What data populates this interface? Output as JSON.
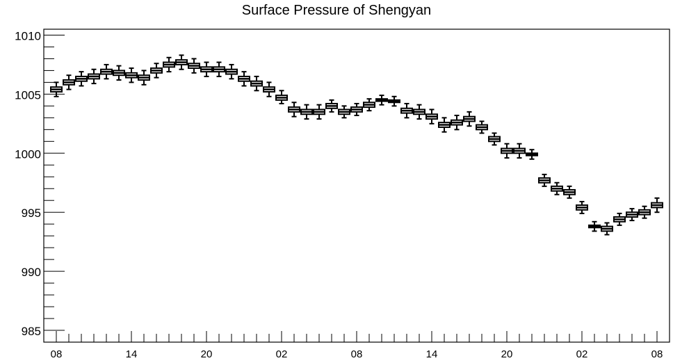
{
  "chart_data": {
    "type": "boxplot",
    "title": "Surface Pressure of Shengyan",
    "xlabel": "",
    "ylabel": "",
    "ylim": [
      984,
      1010.5
    ],
    "yticks": [
      985,
      990,
      995,
      1000,
      1005,
      1010
    ],
    "xlim": [
      0,
      50
    ],
    "xticks": [
      {
        "x": 1,
        "label": "08"
      },
      {
        "x": 7,
        "label": "14"
      },
      {
        "x": 13,
        "label": "20"
      },
      {
        "x": 19,
        "label": "02"
      },
      {
        "x": 25,
        "label": "08"
      },
      {
        "x": 31,
        "label": "14"
      },
      {
        "x": 37,
        "label": "20"
      },
      {
        "x": 43,
        "label": "02"
      },
      {
        "x": 49,
        "label": "08"
      }
    ],
    "grid": false,
    "series": [
      {
        "x": [
          1,
          2,
          3,
          4,
          5,
          6,
          7,
          8,
          9,
          10,
          11,
          12,
          13,
          14,
          15,
          16,
          17,
          18,
          19,
          20,
          21,
          22,
          23,
          24,
          25,
          26,
          27,
          28,
          29,
          30,
          31,
          32,
          33,
          34,
          35,
          36,
          37,
          38,
          39,
          40,
          41,
          42,
          43,
          44,
          45,
          46,
          47,
          48,
          49
        ],
        "median": [
          1005.4,
          1006.0,
          1006.3,
          1006.5,
          1006.9,
          1006.8,
          1006.6,
          1006.4,
          1007.0,
          1007.5,
          1007.7,
          1007.4,
          1007.1,
          1007.1,
          1006.9,
          1006.3,
          1005.9,
          1005.4,
          1004.7,
          1003.7,
          1003.5,
          1003.5,
          1004.0,
          1003.5,
          1003.7,
          1004.1,
          1004.5,
          1004.4,
          1003.6,
          1003.5,
          1003.1,
          1002.4,
          1002.6,
          1002.9,
          1002.2,
          1001.2,
          1000.2,
          1000.2,
          999.9,
          997.7,
          997.0,
          996.7,
          995.4,
          993.8,
          993.6,
          994.4,
          994.8,
          995.0,
          995.6
        ],
        "q1": [
          1005.2,
          1005.8,
          1006.1,
          1006.3,
          1006.7,
          1006.6,
          1006.4,
          1006.2,
          1006.8,
          1007.3,
          1007.5,
          1007.2,
          1006.9,
          1006.9,
          1006.7,
          1006.1,
          1005.7,
          1005.2,
          1004.5,
          1003.5,
          1003.3,
          1003.3,
          1003.8,
          1003.3,
          1003.5,
          1003.9,
          1004.4,
          1004.3,
          1003.4,
          1003.3,
          1002.9,
          1002.2,
          1002.4,
          1002.7,
          1002.0,
          1001.0,
          1000.0,
          1000.0,
          999.8,
          997.5,
          996.8,
          996.5,
          995.2,
          993.7,
          993.4,
          994.2,
          994.6,
          994.8,
          995.4
        ],
        "q3": [
          1005.6,
          1006.2,
          1006.5,
          1006.7,
          1007.1,
          1007.0,
          1006.8,
          1006.6,
          1007.2,
          1007.7,
          1007.9,
          1007.6,
          1007.3,
          1007.3,
          1007.1,
          1006.5,
          1006.1,
          1005.6,
          1004.9,
          1003.9,
          1003.7,
          1003.7,
          1004.2,
          1003.7,
          1003.9,
          1004.3,
          1004.6,
          1004.5,
          1003.8,
          1003.7,
          1003.3,
          1002.6,
          1002.8,
          1003.1,
          1002.4,
          1001.4,
          1000.4,
          1000.4,
          1000.0,
          997.9,
          997.2,
          996.9,
          995.6,
          993.9,
          993.8,
          994.6,
          995.0,
          995.2,
          995.8
        ],
        "min": [
          1004.8,
          1005.4,
          1005.7,
          1005.9,
          1006.3,
          1006.2,
          1006.0,
          1005.8,
          1006.4,
          1006.9,
          1007.1,
          1006.8,
          1006.5,
          1006.5,
          1006.3,
          1005.7,
          1005.3,
          1004.8,
          1004.2,
          1003.1,
          1002.9,
          1002.9,
          1003.5,
          1003.0,
          1003.2,
          1003.6,
          1004.1,
          1004.0,
          1003.0,
          1002.9,
          1002.5,
          1001.8,
          1002.0,
          1002.3,
          1001.7,
          1000.7,
          999.6,
          999.6,
          999.5,
          997.2,
          996.5,
          996.2,
          994.9,
          993.4,
          993.1,
          993.9,
          994.3,
          994.5,
          995.0
        ],
        "max": [
          1006.0,
          1006.6,
          1006.9,
          1007.1,
          1007.5,
          1007.4,
          1007.2,
          1007.0,
          1007.6,
          1008.1,
          1008.3,
          1008.0,
          1007.7,
          1007.7,
          1007.5,
          1006.9,
          1006.5,
          1006.0,
          1005.3,
          1004.3,
          1004.1,
          1004.1,
          1004.5,
          1004.0,
          1004.2,
          1004.6,
          1004.9,
          1004.8,
          1004.2,
          1004.1,
          1003.7,
          1003.0,
          1003.2,
          1003.5,
          1002.7,
          1001.7,
          1000.8,
          1000.8,
          1000.3,
          998.2,
          997.5,
          997.2,
          995.9,
          994.2,
          994.1,
          994.9,
          995.3,
          995.5,
          996.2
        ]
      }
    ]
  }
}
